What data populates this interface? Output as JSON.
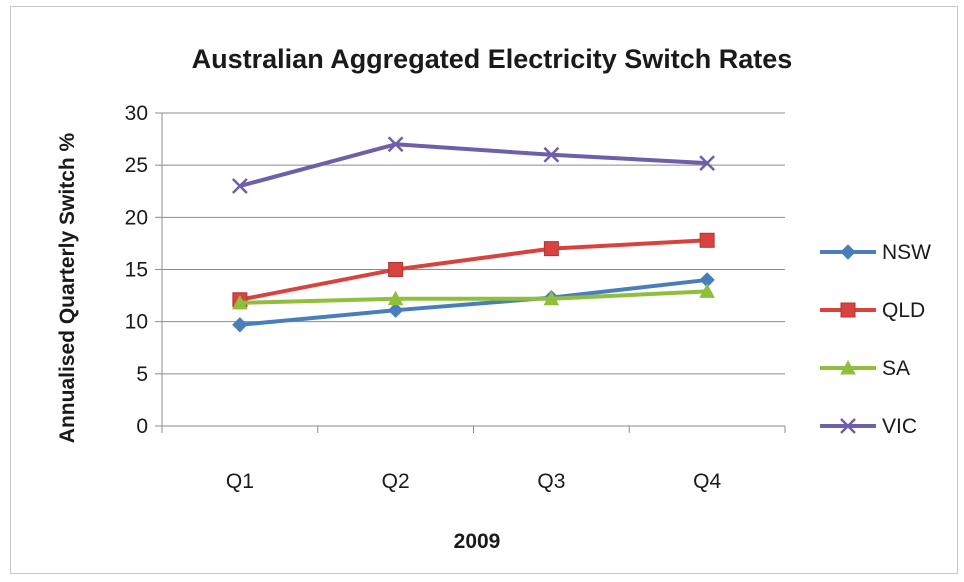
{
  "chart_data": {
    "type": "line",
    "title": "Australian Aggregated Electricity Switch Rates",
    "xlabel": "2009",
    "ylabel": "Annualised Quarterly Switch %",
    "categories": [
      "Q1",
      "Q2",
      "Q3",
      "Q4"
    ],
    "ylim": [
      0,
      30
    ],
    "yticks": [
      0,
      5,
      10,
      15,
      20,
      25,
      30
    ],
    "grid": true,
    "legend": "right",
    "series": [
      {
        "name": "NSW",
        "values": [
          9.7,
          11.1,
          12.3,
          14.0
        ],
        "color": "#4a7ebb",
        "marker": "diamond"
      },
      {
        "name": "QLD",
        "values": [
          12.1,
          15.0,
          17.0,
          17.8
        ],
        "color": "#d9433f",
        "marker": "square"
      },
      {
        "name": "SA",
        "values": [
          11.8,
          12.2,
          12.2,
          12.9
        ],
        "color": "#8fbf3c",
        "marker": "triangle"
      },
      {
        "name": "VIC",
        "values": [
          23.0,
          27.0,
          26.0,
          25.2
        ],
        "color": "#6f5ea8",
        "marker": "x"
      }
    ]
  }
}
